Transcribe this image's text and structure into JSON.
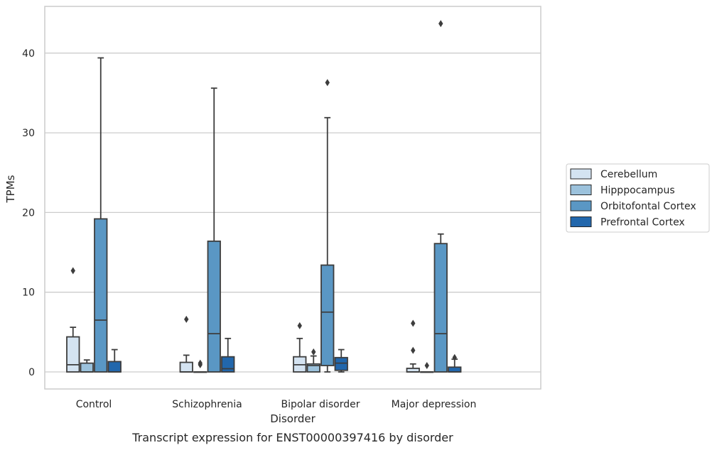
{
  "chart_data": {
    "type": "box",
    "title": "",
    "caption": "Transcript expression for ENST00000397416 by disorder",
    "xlabel": "Disorder",
    "ylabel": "TPMs",
    "ylim": [
      -2,
      46
    ],
    "yticks": [
      0,
      10,
      20,
      30,
      40
    ],
    "grid": "y",
    "legend_placement": "right",
    "categories": [
      "Control",
      "Schizophrenia",
      "Bipolar disorder",
      "Major depression"
    ],
    "series": [
      {
        "name": "Cerebellum",
        "color": "#d4e3f1",
        "boxes": [
          {
            "q1": 0,
            "median": 0.9,
            "q3": 4.4,
            "whisker_low": 0,
            "whisker_high": 5.6,
            "outliers": [
              12.7
            ]
          },
          {
            "q1": 0,
            "median": 0,
            "q3": 1.2,
            "whisker_low": 0,
            "whisker_high": 2.1,
            "outliers": [
              6.6
            ]
          },
          {
            "q1": 0,
            "median": 0.9,
            "q3": 1.9,
            "whisker_low": 0,
            "whisker_high": 4.2,
            "outliers": [
              5.8
            ]
          },
          {
            "q1": 0,
            "median": 0,
            "q3": 0.45,
            "whisker_low": 0,
            "whisker_high": 1.0,
            "outliers": [
              2.7,
              6.1
            ]
          }
        ]
      },
      {
        "name": "Hipppocampus",
        "color": "#9cc2dc",
        "boxes": [
          {
            "q1": 0,
            "median": 0,
            "q3": 1.1,
            "whisker_low": 0,
            "whisker_high": 1.5,
            "outliers": []
          },
          {
            "q1": 0,
            "median": 0,
            "q3": 0,
            "whisker_low": 0,
            "whisker_high": 0,
            "outliers": [
              0.9,
              1.1
            ]
          },
          {
            "q1": 0,
            "median": 0.8,
            "q3": 1.0,
            "whisker_low": 0,
            "whisker_high": 2.0,
            "outliers": [
              2.5
            ]
          },
          {
            "q1": 0,
            "median": 0,
            "q3": 0,
            "whisker_low": 0,
            "whisker_high": 0,
            "outliers": [
              0.8
            ]
          }
        ]
      },
      {
        "name": "Orbitofontal Cortex",
        "color": "#5a97c4",
        "boxes": [
          {
            "q1": 0,
            "median": 6.5,
            "q3": 19.2,
            "whisker_low": 0,
            "whisker_high": 39.4,
            "outliers": []
          },
          {
            "q1": 0,
            "median": 4.8,
            "q3": 16.4,
            "whisker_low": 0,
            "whisker_high": 35.6,
            "outliers": []
          },
          {
            "q1": 0.8,
            "median": 7.5,
            "q3": 13.4,
            "whisker_low": 0,
            "whisker_high": 31.9,
            "outliers": [
              36.3
            ]
          },
          {
            "q1": 0,
            "median": 4.8,
            "q3": 16.1,
            "whisker_low": 0,
            "whisker_high": 17.3,
            "outliers": [
              43.7
            ]
          }
        ]
      },
      {
        "name": "Prefrontal Cortex",
        "color": "#2267ac",
        "boxes": [
          {
            "q1": 0,
            "median": 0,
            "q3": 1.3,
            "whisker_low": 0,
            "whisker_high": 2.8,
            "outliers": []
          },
          {
            "q1": 0,
            "median": 0.4,
            "q3": 1.9,
            "whisker_low": 0,
            "whisker_high": 4.2,
            "outliers": []
          },
          {
            "q1": 0.2,
            "median": 1.1,
            "q3": 1.8,
            "whisker_low": 0,
            "whisker_high": 2.8,
            "outliers": []
          },
          {
            "q1": 0,
            "median": 0,
            "q3": 0.6,
            "whisker_low": 0,
            "whisker_high": 1.6,
            "outliers": [
              1.8
            ]
          }
        ]
      }
    ]
  }
}
